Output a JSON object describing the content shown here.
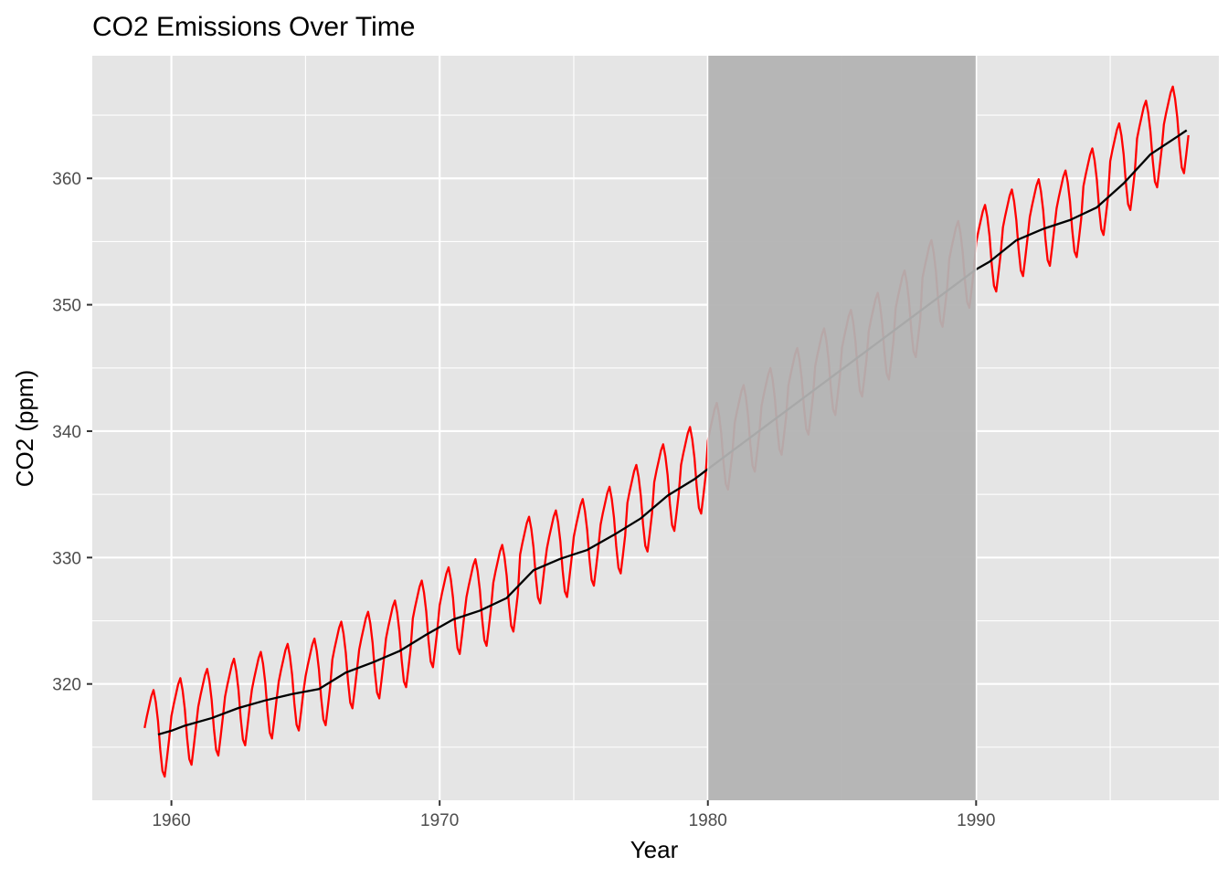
{
  "chart_data": {
    "type": "line",
    "title": "CO2 Emissions Over Time",
    "xlabel": "Year",
    "ylabel": "CO2 (ppm)",
    "xlim": [
      1957.05,
      1999.05
    ],
    "ylim": [
      310.8,
      369.7
    ],
    "x_ticks": [
      1960,
      1970,
      1980,
      1990
    ],
    "y_ticks": [
      320,
      330,
      340,
      350,
      360
    ],
    "grid": true,
    "legend": "none",
    "panel_color": "#e5e5e5",
    "grid_color": "#ffffff",
    "shaded_region": {
      "x_start": 1980,
      "x_end": 1990,
      "color": "#b3b3b3"
    },
    "series": [
      {
        "kind": "monthly",
        "color": "#ff0000",
        "start_year": 1959,
        "seasonal_cycle": [
          0.55,
          1.45,
          2.25,
          3.05,
          3.55,
          2.6,
          1.1,
          -1.15,
          -2.85,
          -3.3,
          -1.85,
          -0.3
        ],
        "annual_means": [
          {
            "year": 1959,
            "mean": 315.97
          },
          {
            "year": 1960,
            "mean": 316.91
          },
          {
            "year": 1961,
            "mean": 317.64
          },
          {
            "year": 1962,
            "mean": 318.45
          },
          {
            "year": 1963,
            "mean": 318.99
          },
          {
            "year": 1964,
            "mean": 319.62
          },
          {
            "year": 1965,
            "mean": 320.04
          },
          {
            "year": 1966,
            "mean": 321.38
          },
          {
            "year": 1967,
            "mean": 322.16
          },
          {
            "year": 1968,
            "mean": 323.05
          },
          {
            "year": 1969,
            "mean": 324.63
          },
          {
            "year": 1970,
            "mean": 325.68
          },
          {
            "year": 1971,
            "mean": 326.32
          },
          {
            "year": 1972,
            "mean": 327.45
          },
          {
            "year": 1973,
            "mean": 329.68
          },
          {
            "year": 1974,
            "mean": 330.18
          },
          {
            "year": 1975,
            "mean": 331.08
          },
          {
            "year": 1976,
            "mean": 332.05
          },
          {
            "year": 1977,
            "mean": 333.78
          },
          {
            "year": 1978,
            "mean": 335.41
          },
          {
            "year": 1979,
            "mean": 336.78
          },
          {
            "year": 1980,
            "mean": 338.68
          },
          {
            "year": 1981,
            "mean": 340.1
          },
          {
            "year": 1982,
            "mean": 341.44
          },
          {
            "year": 1983,
            "mean": 343.03
          },
          {
            "year": 1984,
            "mean": 344.58
          },
          {
            "year": 1985,
            "mean": 346.04
          },
          {
            "year": 1986,
            "mean": 347.39
          },
          {
            "year": 1987,
            "mean": 349.16
          },
          {
            "year": 1988,
            "mean": 351.56
          },
          {
            "year": 1989,
            "mean": 353.07
          },
          {
            "year": 1990,
            "mean": 354.35
          },
          {
            "year": 1991,
            "mean": 355.57
          },
          {
            "year": 1992,
            "mean": 356.38
          },
          {
            "year": 1993,
            "mean": 357.07
          },
          {
            "year": 1994,
            "mean": 358.82
          },
          {
            "year": 1995,
            "mean": 360.8
          },
          {
            "year": 1996,
            "mean": 362.59
          },
          {
            "year": 1997,
            "mean": 363.71
          }
        ]
      },
      {
        "kind": "trend",
        "color": "#000000",
        "points": [
          {
            "x": 1959.5,
            "y": 316.0
          },
          {
            "x": 1960.0,
            "y": 316.3
          },
          {
            "x": 1960.5,
            "y": 316.7
          },
          {
            "x": 1961.5,
            "y": 317.3
          },
          {
            "x": 1962.5,
            "y": 318.1
          },
          {
            "x": 1963.5,
            "y": 318.7
          },
          {
            "x": 1964.5,
            "y": 319.2
          },
          {
            "x": 1965.5,
            "y": 319.6
          },
          {
            "x": 1966.5,
            "y": 320.9
          },
          {
            "x": 1967.5,
            "y": 321.7
          },
          {
            "x": 1968.5,
            "y": 322.6
          },
          {
            "x": 1969.5,
            "y": 323.9
          },
          {
            "x": 1970.5,
            "y": 325.1
          },
          {
            "x": 1971.5,
            "y": 325.8
          },
          {
            "x": 1972.5,
            "y": 326.8
          },
          {
            "x": 1973.5,
            "y": 329.0
          },
          {
            "x": 1974.5,
            "y": 329.9
          },
          {
            "x": 1975.5,
            "y": 330.6
          },
          {
            "x": 1976.5,
            "y": 331.8
          },
          {
            "x": 1977.5,
            "y": 333.1
          },
          {
            "x": 1978.5,
            "y": 334.9
          },
          {
            "x": 1979.5,
            "y": 336.2
          },
          {
            "x": 1980.0,
            "y": 337.0
          },
          {
            "x": 1990.0,
            "y": 352.8
          },
          {
            "x": 1990.5,
            "y": 353.4
          },
          {
            "x": 1991.5,
            "y": 355.1
          },
          {
            "x": 1992.5,
            "y": 356.0
          },
          {
            "x": 1993.5,
            "y": 356.7
          },
          {
            "x": 1994.5,
            "y": 357.7
          },
          {
            "x": 1995.5,
            "y": 359.6
          },
          {
            "x": 1996.5,
            "y": 361.9
          },
          {
            "x": 1997.5,
            "y": 363.3
          },
          {
            "x": 1997.85,
            "y": 363.8
          }
        ]
      }
    ]
  }
}
